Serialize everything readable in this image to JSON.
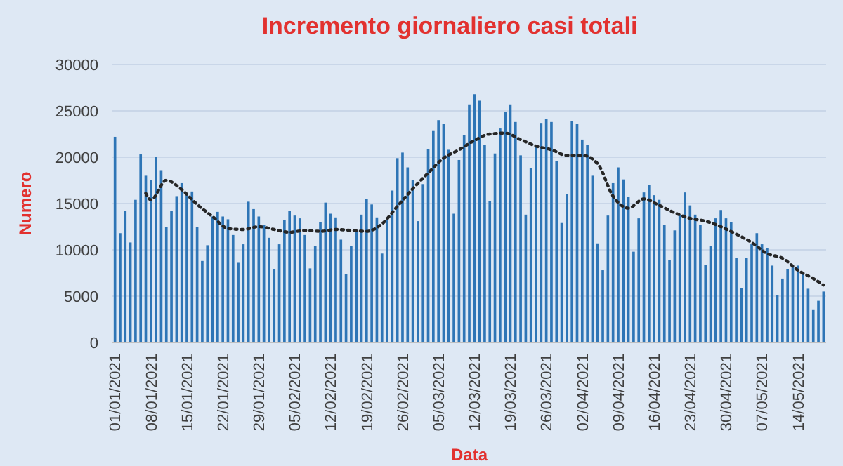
{
  "chart_data": {
    "type": "bar",
    "title": "Incremento giornaliero casi totali",
    "xlabel": "Data",
    "ylabel": "Numero",
    "x": [
      "2021-01-01",
      "2021-01-02",
      "2021-01-03",
      "2021-01-04",
      "2021-01-05",
      "2021-01-06",
      "2021-01-07",
      "2021-01-08",
      "2021-01-09",
      "2021-01-10",
      "2021-01-11",
      "2021-01-12",
      "2021-01-13",
      "2021-01-14",
      "2021-01-15",
      "2021-01-16",
      "2021-01-17",
      "2021-01-18",
      "2021-01-19",
      "2021-01-20",
      "2021-01-21",
      "2021-01-22",
      "2021-01-23",
      "2021-01-24",
      "2021-01-25",
      "2021-01-26",
      "2021-01-27",
      "2021-01-28",
      "2021-01-29",
      "2021-01-30",
      "2021-01-31",
      "2021-02-01",
      "2021-02-02",
      "2021-02-03",
      "2021-02-04",
      "2021-02-05",
      "2021-02-06",
      "2021-02-07",
      "2021-02-08",
      "2021-02-09",
      "2021-02-10",
      "2021-02-11",
      "2021-02-12",
      "2021-02-13",
      "2021-02-14",
      "2021-02-15",
      "2021-02-16",
      "2021-02-17",
      "2021-02-18",
      "2021-02-19",
      "2021-02-20",
      "2021-02-21",
      "2021-02-22",
      "2021-02-23",
      "2021-02-24",
      "2021-02-25",
      "2021-02-26",
      "2021-02-27",
      "2021-02-28",
      "2021-03-01",
      "2021-03-02",
      "2021-03-03",
      "2021-03-04",
      "2021-03-05",
      "2021-03-06",
      "2021-03-07",
      "2021-03-08",
      "2021-03-09",
      "2021-03-10",
      "2021-03-11",
      "2021-03-12",
      "2021-03-13",
      "2021-03-14",
      "2021-03-15",
      "2021-03-16",
      "2021-03-17",
      "2021-03-18",
      "2021-03-19",
      "2021-03-20",
      "2021-03-21",
      "2021-03-22",
      "2021-03-23",
      "2021-03-24",
      "2021-03-25",
      "2021-03-26",
      "2021-03-27",
      "2021-03-28",
      "2021-03-29",
      "2021-03-30",
      "2021-03-31",
      "2021-04-01",
      "2021-04-02",
      "2021-04-03",
      "2021-04-04",
      "2021-04-05",
      "2021-04-06",
      "2021-04-07",
      "2021-04-08",
      "2021-04-09",
      "2021-04-10",
      "2021-04-11",
      "2021-04-12",
      "2021-04-13",
      "2021-04-14",
      "2021-04-15",
      "2021-04-16",
      "2021-04-17",
      "2021-04-18",
      "2021-04-19",
      "2021-04-20",
      "2021-04-21",
      "2021-04-22",
      "2021-04-23",
      "2021-04-24",
      "2021-04-25",
      "2021-04-26",
      "2021-04-27",
      "2021-04-28",
      "2021-04-29",
      "2021-04-30",
      "2021-05-01",
      "2021-05-02",
      "2021-05-03",
      "2021-05-04",
      "2021-05-05",
      "2021-05-06",
      "2021-05-07",
      "2021-05-08",
      "2021-05-09",
      "2021-05-10",
      "2021-05-11",
      "2021-05-12",
      "2021-05-13",
      "2021-05-14",
      "2021-05-15",
      "2021-05-16",
      "2021-05-17",
      "2021-05-18",
      "2021-05-19"
    ],
    "series": [
      {
        "color": "#2e75b6",
        "values": [
          22200,
          11800,
          14200,
          10800,
          15400,
          20300,
          18000,
          17500,
          20000,
          18600,
          12500,
          14200,
          15800,
          17200,
          16100,
          16300,
          12500,
          8800,
          10500,
          13600,
          14100,
          13600,
          13300,
          11600,
          8600,
          10600,
          15200,
          14400,
          13600,
          12700,
          11300,
          7900,
          10600,
          13200,
          14200,
          13700,
          13400,
          11600,
          8000,
          10400,
          13000,
          15100,
          13900,
          13500,
          11100,
          7400,
          10400,
          12100,
          13800,
          15500,
          14900,
          13500,
          9600,
          13300,
          16400,
          19900,
          20500,
          18900,
          17500,
          13100,
          17100,
          20900,
          22900,
          24000,
          23600,
          20800,
          13900,
          19700,
          22400,
          25700,
          26800,
          26100,
          21300,
          15300,
          20400,
          23100,
          24900,
          25700,
          23800,
          20200,
          13800,
          18800,
          21300,
          23700,
          24100,
          23800,
          19600,
          12900,
          16000,
          23900,
          23600,
          21900,
          21300,
          18000,
          10700,
          7800,
          13700,
          17200,
          18900,
          17600,
          15700,
          9800,
          13400,
          16200,
          17000,
          15900,
          15400,
          12700,
          8900,
          12100,
          13800,
          16200,
          14800,
          13800,
          12700,
          8400,
          10400,
          13400,
          14300,
          13400,
          13000,
          9100,
          5900,
          9100,
          10600,
          11800,
          10600,
          10200,
          8300,
          5100,
          6900,
          7900,
          8100,
          8300,
          7600,
          5800,
          3500,
          4500,
          5500
        ]
      },
      {
        "type": "line",
        "color": "#262626",
        "line_style": "dotted",
        "marker": "none",
        "x": [
          "2021-01-07",
          "2021-01-08",
          "2021-01-11",
          "2021-01-14",
          "2021-01-17",
          "2021-01-20",
          "2021-01-23",
          "2021-01-26",
          "2021-01-29",
          "2021-02-01",
          "2021-02-04",
          "2021-02-07",
          "2021-02-10",
          "2021-02-13",
          "2021-02-16",
          "2021-02-19",
          "2021-02-22",
          "2021-02-25",
          "2021-02-28",
          "2021-03-03",
          "2021-03-06",
          "2021-03-09",
          "2021-03-12",
          "2021-03-15",
          "2021-03-18",
          "2021-03-21",
          "2021-03-24",
          "2021-03-27",
          "2021-03-30",
          "2021-04-02",
          "2021-04-05",
          "2021-04-08",
          "2021-04-11",
          "2021-04-14",
          "2021-04-17",
          "2021-04-20",
          "2021-04-23",
          "2021-04-26",
          "2021-04-29",
          "2021-05-02",
          "2021-05-05",
          "2021-05-08",
          "2021-05-11",
          "2021-05-14",
          "2021-05-17",
          "2021-05-19"
        ],
        "values": [
          16100,
          15400,
          17500,
          16500,
          14900,
          13600,
          12300,
          12200,
          12500,
          12200,
          11900,
          12100,
          12000,
          12200,
          12100,
          12000,
          12800,
          14700,
          16600,
          18300,
          19900,
          20800,
          21800,
          22500,
          22600,
          21900,
          21200,
          20800,
          20200,
          20200,
          19300,
          15800,
          14500,
          15500,
          14800,
          14000,
          13400,
          13100,
          12500,
          11700,
          10800,
          9600,
          9100,
          7800,
          6900,
          6200
        ]
      }
    ],
    "xlim": [
      "2020-12-31T12:00",
      "2021-05-19T12:00"
    ],
    "xticks": [
      {
        "value": "2021-01-01",
        "label": "01/01/2021"
      },
      {
        "value": "2021-01-08",
        "label": "08/01/2021"
      },
      {
        "value": "2021-01-15",
        "label": "15/01/2021"
      },
      {
        "value": "2021-01-22",
        "label": "22/01/2021"
      },
      {
        "value": "2021-01-29",
        "label": "29/01/2021"
      },
      {
        "value": "2021-02-05",
        "label": "05/02/2021"
      },
      {
        "value": "2021-02-12",
        "label": "12/02/2021"
      },
      {
        "value": "2021-02-19",
        "label": "19/02/2021"
      },
      {
        "value": "2021-02-26",
        "label": "26/02/2021"
      },
      {
        "value": "2021-03-05",
        "label": "05/03/2021"
      },
      {
        "value": "2021-03-12",
        "label": "12/03/2021"
      },
      {
        "value": "2021-03-19",
        "label": "19/03/2021"
      },
      {
        "value": "2021-03-26",
        "label": "26/03/2021"
      },
      {
        "value": "2021-04-02",
        "label": "02/04/2021"
      },
      {
        "value": "2021-04-09",
        "label": "09/04/2021"
      },
      {
        "value": "2021-04-16",
        "label": "16/04/2021"
      },
      {
        "value": "2021-04-23",
        "label": "23/04/2021"
      },
      {
        "value": "2021-04-30",
        "label": "30/04/2021"
      },
      {
        "value": "2021-05-07",
        "label": "07/05/2021"
      },
      {
        "value": "2021-05-14",
        "label": "14/05/2021"
      }
    ],
    "ylim": [
      0,
      30000
    ],
    "yticks": [
      0,
      5000,
      10000,
      15000,
      20000,
      25000,
      30000
    ],
    "grid": "y"
  }
}
